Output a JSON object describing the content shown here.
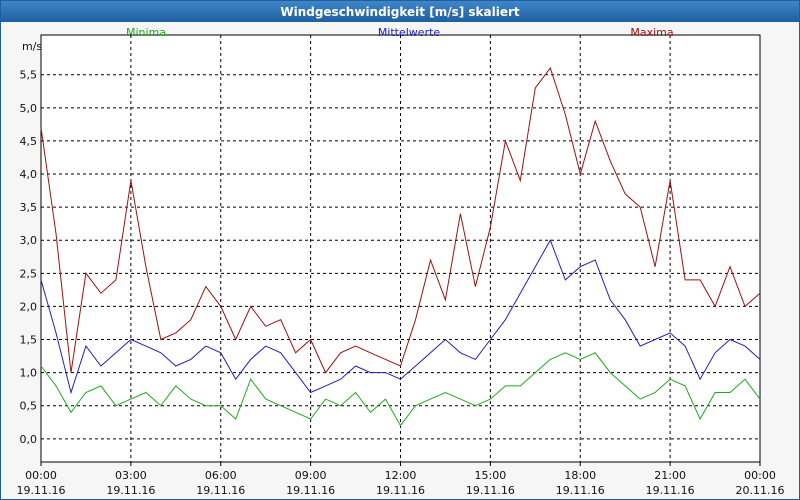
{
  "window": {
    "title": "Windgeschwindigkeit [m/s] skaliert"
  },
  "chart_data": {
    "type": "line",
    "title": "Windgeschwindigkeit [m/s] skaliert",
    "ylabel": "m/s",
    "xlabel": "",
    "ylim": [
      -0.35,
      6.1
    ],
    "xlim_hours": [
      0,
      24
    ],
    "grid": true,
    "legend_placement": "top",
    "y_ticks": [
      "0,0",
      "0,5",
      "1,0",
      "1,5",
      "2,0",
      "2,5",
      "3,0",
      "3,5",
      "4,0",
      "4,5",
      "5,0",
      "5,5"
    ],
    "y_tick_values": [
      0,
      0.5,
      1,
      1.5,
      2,
      2.5,
      3,
      3.5,
      4,
      4.5,
      5,
      5.5
    ],
    "x_ticks": [
      {
        "time": "00:00",
        "date": "19.11.16"
      },
      {
        "time": "03:00",
        "date": "19.11.16"
      },
      {
        "time": "06:00",
        "date": "19.11.16"
      },
      {
        "time": "09:00",
        "date": "19.11.16"
      },
      {
        "time": "12:00",
        "date": "19.11.16"
      },
      {
        "time": "15:00",
        "date": "19.11.16"
      },
      {
        "time": "18:00",
        "date": "19.11.16"
      },
      {
        "time": "21:00",
        "date": "19.11.16"
      },
      {
        "time": "00:00",
        "date": "20.11.16"
      }
    ],
    "x_tick_hours": [
      0,
      3,
      6,
      9,
      12,
      15,
      18,
      21,
      24
    ],
    "colors": {
      "minima": "#1faa1f",
      "mittelwerte": "#2020c0",
      "maxima": "#a01010"
    },
    "series": [
      {
        "name": "Minima",
        "x": [
          0,
          0.5,
          1,
          1.5,
          2,
          2.5,
          3,
          3.5,
          4,
          4.5,
          5,
          5.5,
          6,
          6.5,
          7,
          7.5,
          8,
          8.5,
          9,
          9.5,
          10,
          10.5,
          11,
          11.5,
          12,
          12.5,
          13,
          13.5,
          14,
          14.5,
          15,
          15.5,
          16,
          16.5,
          17,
          17.5,
          18,
          18.5,
          19,
          19.5,
          20,
          20.5,
          21,
          21.5,
          22,
          22.5,
          23,
          23.5,
          24
        ],
        "y": [
          1.1,
          0.8,
          0.4,
          0.7,
          0.8,
          0.5,
          0.6,
          0.7,
          0.5,
          0.8,
          0.6,
          0.5,
          0.5,
          0.3,
          0.9,
          0.6,
          0.5,
          0.4,
          0.3,
          0.6,
          0.5,
          0.7,
          0.4,
          0.6,
          0.2,
          0.5,
          0.6,
          0.7,
          0.6,
          0.5,
          0.6,
          0.8,
          0.8,
          1.0,
          1.2,
          1.3,
          1.2,
          1.3,
          1.0,
          0.8,
          0.6,
          0.7,
          0.9,
          0.8,
          0.3,
          0.7,
          0.7,
          0.9,
          0.6
        ]
      },
      {
        "name": "Mittelwerte",
        "x": [
          0,
          0.5,
          1,
          1.5,
          2,
          2.5,
          3,
          3.5,
          4,
          4.5,
          5,
          5.5,
          6,
          6.5,
          7,
          7.5,
          8,
          8.5,
          9,
          9.5,
          10,
          10.5,
          11,
          11.5,
          12,
          12.5,
          13,
          13.5,
          14,
          14.5,
          15,
          15.5,
          16,
          16.5,
          17,
          17.5,
          18,
          18.5,
          19,
          19.5,
          20,
          20.5,
          21,
          21.5,
          22,
          22.5,
          23,
          23.5,
          24
        ],
        "y": [
          2.4,
          1.6,
          0.7,
          1.4,
          1.1,
          1.3,
          1.5,
          1.4,
          1.3,
          1.1,
          1.2,
          1.4,
          1.3,
          0.9,
          1.2,
          1.4,
          1.3,
          1.0,
          0.7,
          0.8,
          0.9,
          1.1,
          1.0,
          1.0,
          0.9,
          1.1,
          1.3,
          1.5,
          1.3,
          1.2,
          1.5,
          1.8,
          2.2,
          2.6,
          3.0,
          2.4,
          2.6,
          2.7,
          2.1,
          1.8,
          1.4,
          1.5,
          1.6,
          1.4,
          0.9,
          1.3,
          1.5,
          1.4,
          1.2
        ]
      },
      {
        "name": "Maxima",
        "x": [
          0,
          0.5,
          1,
          1.5,
          2,
          2.5,
          3,
          3.5,
          4,
          4.5,
          5,
          5.5,
          6,
          6.5,
          7,
          7.5,
          8,
          8.5,
          9,
          9.5,
          10,
          10.5,
          11,
          11.5,
          12,
          12.5,
          13,
          13.5,
          14,
          14.5,
          15,
          15.5,
          16,
          16.5,
          17,
          17.5,
          18,
          18.5,
          19,
          19.5,
          20,
          20.5,
          21,
          21.5,
          22,
          22.5,
          23,
          23.5,
          24
        ],
        "y": [
          4.7,
          3.1,
          1.0,
          2.5,
          2.2,
          2.4,
          3.9,
          2.6,
          1.5,
          1.6,
          1.8,
          2.3,
          2.0,
          1.5,
          2.0,
          1.7,
          1.8,
          1.3,
          1.5,
          1.0,
          1.3,
          1.4,
          1.3,
          1.2,
          1.1,
          1.8,
          2.7,
          2.1,
          3.4,
          2.3,
          3.2,
          4.5,
          3.9,
          5.3,
          5.6,
          4.9,
          4.0,
          4.8,
          4.2,
          3.7,
          3.5,
          2.6,
          3.9,
          2.4,
          2.4,
          2.0,
          2.6,
          2.0,
          2.2
        ]
      }
    ]
  }
}
